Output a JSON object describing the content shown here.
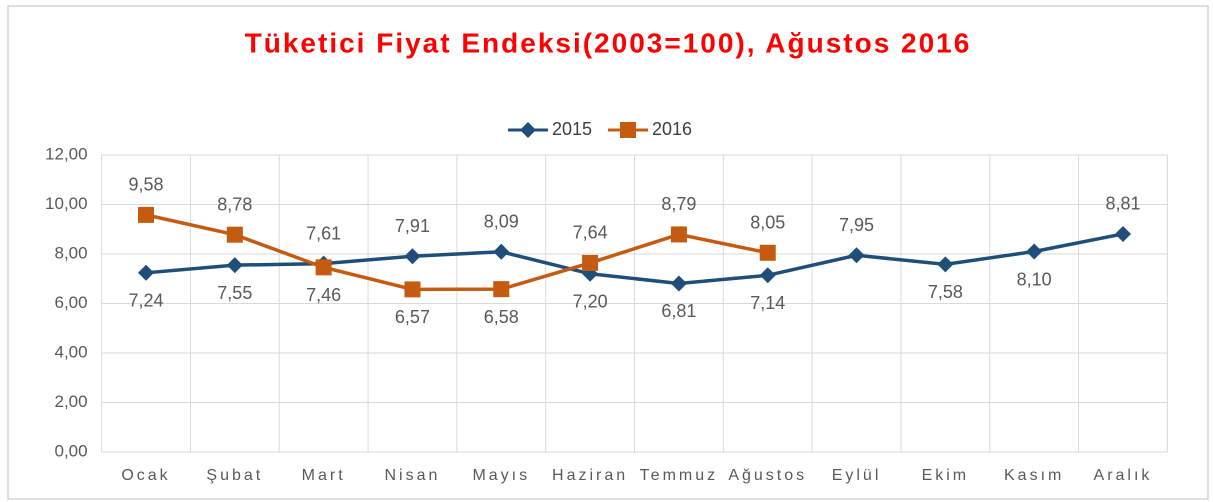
{
  "chart_data": {
    "type": "line",
    "title": "Tüketici Fiyat Endeksi(2003=100), Ağustos 2016",
    "categories": [
      "Ocak",
      "Şubat",
      "Mart",
      "Nisan",
      "Mayıs",
      "Haziran",
      "Temmuz",
      "Ağustos",
      "Eylül",
      "Ekim",
      "Kasım",
      "Aralık"
    ],
    "series": [
      {
        "name": "2015",
        "color": "#1f4e79",
        "marker": "diamond",
        "values": [
          7.24,
          7.55,
          7.61,
          7.91,
          8.09,
          7.2,
          6.81,
          7.14,
          7.95,
          7.58,
          8.1,
          8.81
        ],
        "value_labels": [
          "7,24",
          "7,55",
          "7,61",
          "7,91",
          "8,09",
          "7,20",
          "6,81",
          "7,14",
          "7,95",
          "7,58",
          "8,10",
          "8,81"
        ]
      },
      {
        "name": "2016",
        "color": "#c55a11",
        "marker": "square",
        "values": [
          9.58,
          8.78,
          7.46,
          6.57,
          6.58,
          7.64,
          8.79,
          8.05,
          null,
          null,
          null,
          null
        ],
        "value_labels": [
          "9,58",
          "8,78",
          "7,46",
          "6,57",
          "6,58",
          "7,64",
          "8,79",
          "8,05",
          null,
          null,
          null,
          null
        ]
      }
    ],
    "ylim": [
      0,
      12
    ],
    "yticks": [
      {
        "value": 0,
        "label": "0,00"
      },
      {
        "value": 2,
        "label": "2,00"
      },
      {
        "value": 4,
        "label": "4,00"
      },
      {
        "value": 6,
        "label": "6,00"
      },
      {
        "value": 8,
        "label": "8,00"
      },
      {
        "value": 10,
        "label": "10,00"
      },
      {
        "value": 12,
        "label": "12,00"
      }
    ],
    "grid": true,
    "legend": "top"
  }
}
